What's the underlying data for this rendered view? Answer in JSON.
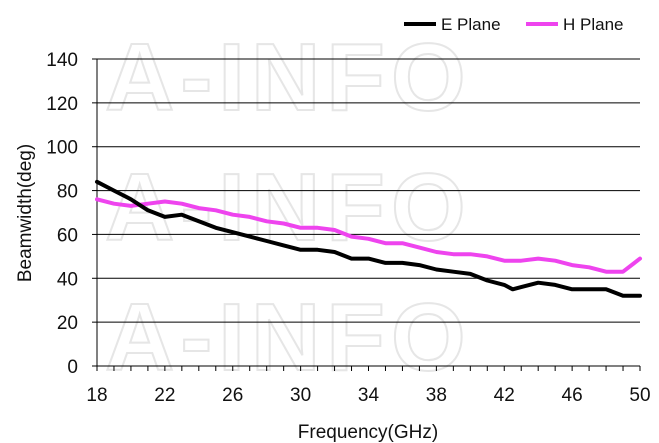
{
  "chart_data": {
    "type": "line",
    "title": "",
    "xlabel": "Frequency(GHz)",
    "ylabel": "Beamwidth(deg)",
    "xlim": [
      18,
      50
    ],
    "ylim": [
      0,
      140
    ],
    "xticks": [
      18,
      22,
      26,
      30,
      34,
      38,
      42,
      46,
      50
    ],
    "yticks": [
      0,
      20,
      40,
      60,
      80,
      100,
      120,
      140
    ],
    "grid": "horizontal",
    "legend": "top-right",
    "watermark": "A-INFO",
    "series": [
      {
        "name": "E Plane",
        "color": "#000000",
        "x": [
          18,
          19,
          20,
          21,
          22,
          23,
          24,
          25,
          26,
          27,
          28,
          29,
          30,
          31,
          32,
          33,
          34,
          35,
          36,
          37,
          38,
          39,
          40,
          41,
          42,
          42.5,
          43,
          44,
          45,
          46,
          47,
          48,
          49,
          50
        ],
        "y": [
          84,
          80,
          76,
          71,
          68,
          69,
          66,
          63,
          61,
          59,
          57,
          55,
          53,
          53,
          52,
          49,
          49,
          47,
          47,
          46,
          44,
          43,
          42,
          39,
          37,
          35,
          36,
          38,
          37,
          35,
          35,
          35,
          32,
          32
        ]
      },
      {
        "name": "H Plane",
        "color": "#ee44ee",
        "x": [
          18,
          19,
          20,
          21,
          22,
          23,
          24,
          25,
          26,
          27,
          28,
          29,
          30,
          31,
          32,
          33,
          34,
          35,
          36,
          37,
          38,
          39,
          40,
          41,
          42,
          43,
          44,
          45,
          46,
          47,
          48,
          49,
          50
        ],
        "y": [
          76,
          74,
          73,
          74,
          75,
          74,
          72,
          71,
          69,
          68,
          66,
          65,
          63,
          63,
          62,
          59,
          58,
          56,
          56,
          54,
          52,
          51,
          51,
          50,
          48,
          48,
          49,
          48,
          46,
          45,
          43,
          43,
          49
        ]
      }
    ]
  }
}
